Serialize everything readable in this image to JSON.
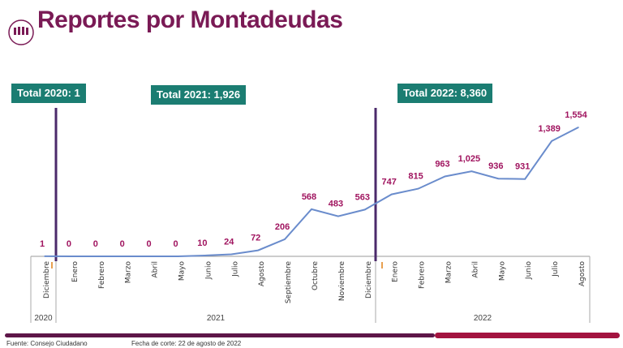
{
  "header": {
    "title": "Reportes por Montadeudas",
    "logo_text": "Consejo Ciudadano"
  },
  "badges": [
    "Total 2020: 1",
    "Total 2021: 1,926",
    "Total 2022: 8,360"
  ],
  "chart_data": {
    "type": "line",
    "title": "",
    "categories": [
      "Diciembre",
      "Enero",
      "Febrero",
      "Marzo",
      "Abril",
      "Mayo",
      "Junio",
      "Julio",
      "Agosto",
      "Septiembre",
      "Octubre",
      "Noviembre",
      "Diciembre",
      "Enero",
      "Febrero",
      "Marzo",
      "Abril",
      "Mayo",
      "Junio",
      "Julio",
      "Agosto"
    ],
    "years": [
      {
        "label": "2020",
        "span": 1
      },
      {
        "label": "2021",
        "span": 12
      },
      {
        "label": "2022",
        "span": 8
      }
    ],
    "values": [
      1,
      0,
      0,
      0,
      0,
      0,
      10,
      24,
      72,
      206,
      568,
      483,
      563,
      747,
      815,
      963,
      1025,
      936,
      931,
      1389,
      1554
    ],
    "data_labels": [
      "1",
      "0",
      "0",
      "0",
      "0",
      "0",
      "10",
      "24",
      "72",
      "206",
      "568",
      "483",
      "563",
      "747",
      "815",
      "963",
      "1,025",
      "936",
      "931",
      "1,389",
      "1,554"
    ],
    "ylim": [
      0,
      1600
    ],
    "grid": false,
    "line_color": "#6a8ccc",
    "label_color": "#a0145f",
    "divider_color": "#4b2a6b"
  },
  "footer": {
    "source": "Fuente: Consejo Ciudadano",
    "cutoff": "Fecha de corte: 22 de agosto de 2022"
  }
}
